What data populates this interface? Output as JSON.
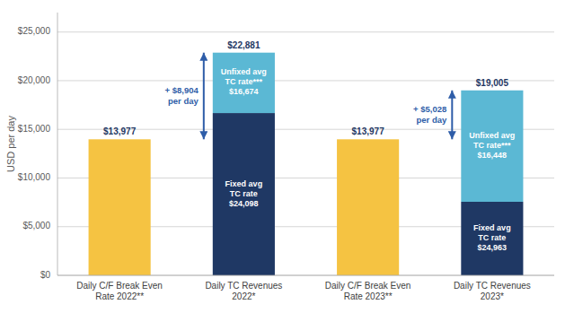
{
  "chart_data": {
    "type": "bar",
    "stacked": true,
    "categories": [
      "Daily C/F Break Even\nRate 2022**",
      "Daily TC Revenues\n2022*",
      "Daily C/F Break Even\nRate 2023**",
      "Daily TC Revenues\n2023*"
    ],
    "series": [
      {
        "color": "#F5C342",
        "values": [
          13977,
          null,
          13977,
          null
        ]
      },
      {
        "color": "#1F3864",
        "values": [
          null,
          16674,
          null,
          7557
        ],
        "segment_texts": [
          null,
          "Fixed avg\nTC rate\n$24,098",
          null,
          "Fixed avg\nTC rate\n$24,963"
        ],
        "segment_text_color": "#FFFFFF"
      },
      {
        "color": "#5BB8D4",
        "values": [
          null,
          6207,
          null,
          11448
        ],
        "segment_texts": [
          null,
          "Unfixed avg\nTC rate***\n$16,674",
          null,
          "Unfixed avg\nTC rate***\n$16,448"
        ],
        "segment_text_color": "#FFFFFF"
      }
    ],
    "totals": [
      13977,
      22881,
      13977,
      19005
    ],
    "total_labels": [
      "$13,977",
      "$22,881",
      "$13,977",
      "$19,005"
    ],
    "total_label_color": "#1F3864",
    "annotations": [
      {
        "category": "Daily TC Revenues\n2022*",
        "from": 13977,
        "to": 22881,
        "label": "+ $8,904\nper day"
      },
      {
        "category": "Daily TC Revenues\n2023*",
        "from": 13977,
        "to": 19005,
        "label": "+ $5,028\nper day"
      }
    ],
    "arrow_color": "#2E5DA8",
    "ylabel": "USD per day",
    "ylim": [
      0,
      27000
    ],
    "yticks": [
      {
        "value": 0,
        "label": "$0"
      },
      {
        "value": 5000,
        "label": "$5,000"
      },
      {
        "value": 10000,
        "label": "$10,000"
      },
      {
        "value": 15000,
        "label": "$15,000"
      },
      {
        "value": 20000,
        "label": "$20,000"
      },
      {
        "value": 25000,
        "label": "$25,000"
      }
    ],
    "grid": true,
    "background_color": "#FFFFFF",
    "grid_color": "#CCCCCC"
  }
}
